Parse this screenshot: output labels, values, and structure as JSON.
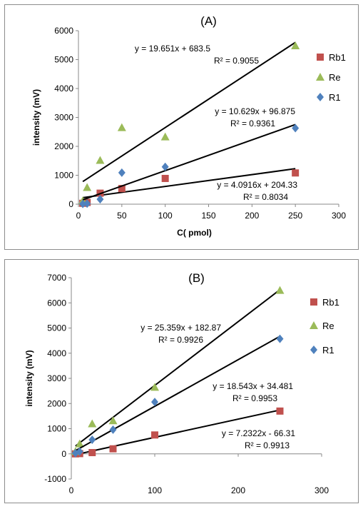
{
  "chart_data": [
    {
      "type": "scatter",
      "title": "(A)",
      "xlabel": "C( pmol)",
      "ylabel": "intensity (mV)",
      "xlim": [
        0,
        300
      ],
      "ylim": [
        0,
        6000
      ],
      "xticks": [
        "0",
        "50",
        "100",
        "150",
        "200",
        "250",
        "300"
      ],
      "yticks": [
        "0",
        "1000",
        "2000",
        "3000",
        "4000",
        "5000",
        "6000"
      ],
      "grid": false,
      "legend": "right",
      "series": [
        {
          "name": "Rb1",
          "marker": "square",
          "color": "#c0504d",
          "x": [
            5,
            10,
            25,
            50,
            100,
            250
          ],
          "y": [
            30,
            60,
            380,
            540,
            890,
            1080
          ],
          "trend": {
            "slope": 4.0916,
            "intercept": 204.33,
            "x_range": [
              5,
              250
            ],
            "equation": "y = 4.0916x + 204.33",
            "r2": "R² = 0.8034"
          }
        },
        {
          "name": "Re",
          "marker": "triangle",
          "color": "#9bbb59",
          "x": [
            5,
            10,
            25,
            50,
            100,
            250
          ],
          "y": [
            120,
            580,
            1520,
            2650,
            2330,
            5480
          ],
          "trend": {
            "slope": 19.651,
            "intercept": 683.5,
            "x_range": [
              5,
              250
            ],
            "equation": "y = 19.651x + 683.5",
            "r2": "R² = 0.9055"
          }
        },
        {
          "name": "R1",
          "marker": "diamond",
          "color": "#4f81bd",
          "x": [
            5,
            10,
            25,
            50,
            100,
            250
          ],
          "y": [
            10,
            20,
            170,
            1090,
            1290,
            2630
          ],
          "trend": {
            "slope": 10.629,
            "intercept": 96.875,
            "x_range": [
              5,
              250
            ],
            "equation": "y = 10.629x + 96.875",
            "r2": "R² = 0.9361"
          }
        }
      ]
    },
    {
      "type": "scatter",
      "title": "(B)",
      "xlabel": "C( pmol)",
      "ylabel": "intensity (mV)",
      "xlim": [
        0,
        300
      ],
      "ylim": [
        -1000,
        7000
      ],
      "xticks": [
        "0",
        "100",
        "200",
        "300"
      ],
      "yticks": [
        "-1000",
        "0",
        "1000",
        "2000",
        "3000",
        "4000",
        "5000",
        "6000",
        "7000"
      ],
      "grid": false,
      "legend": "right",
      "series": [
        {
          "name": "Rb1",
          "marker": "square",
          "color": "#c0504d",
          "x": [
            5,
            10,
            25,
            50,
            100,
            250
          ],
          "y": [
            0,
            10,
            50,
            200,
            750,
            1700
          ],
          "trend": {
            "slope": 7.2322,
            "intercept": -66.31,
            "x_range": [
              5,
              250
            ],
            "equation": "y = 7.2322x - 66.31",
            "r2": "R² = 0.9913"
          }
        },
        {
          "name": "Re",
          "marker": "triangle",
          "color": "#9bbb59",
          "x": [
            5,
            10,
            25,
            50,
            100,
            250
          ],
          "y": [
            100,
            400,
            1200,
            1320,
            2650,
            6500
          ],
          "trend": {
            "slope": 25.359,
            "intercept": 182.87,
            "x_range": [
              5,
              250
            ],
            "equation": "y = 25.359x + 182.87",
            "r2": "R² = 0.9926"
          }
        },
        {
          "name": "R1",
          "marker": "diamond",
          "color": "#4f81bd",
          "x": [
            5,
            10,
            25,
            50,
            100,
            250
          ],
          "y": [
            30,
            90,
            560,
            960,
            2060,
            4570
          ],
          "trend": {
            "slope": 18.543,
            "intercept": 34.481,
            "x_range": [
              5,
              250
            ],
            "equation": "y = 18.543x + 34.481",
            "r2": "R² = 0.9953"
          }
        }
      ]
    }
  ]
}
